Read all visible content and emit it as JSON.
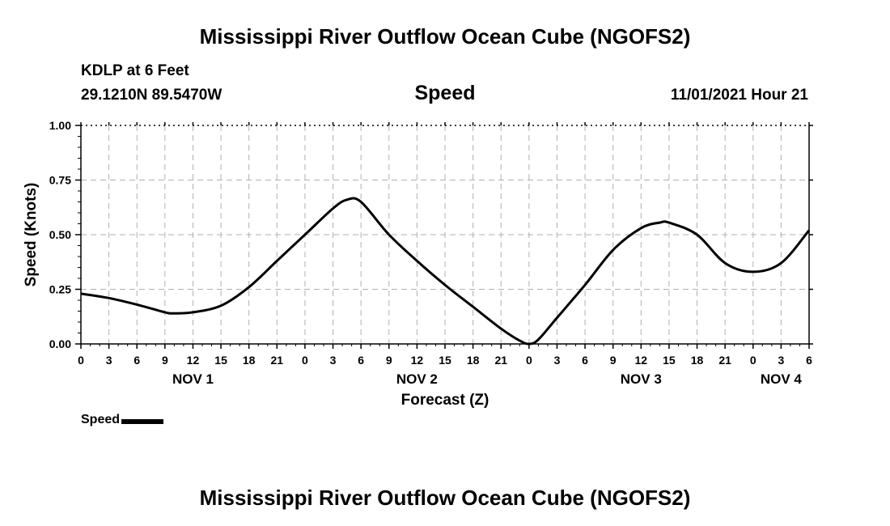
{
  "header": {
    "title": "Mississippi River Outflow Ocean Cube (NGOFS2)",
    "station": "KDLP at 6 Feet",
    "coords": "29.1210N  89.5470W",
    "datetime": "11/01/2021 Hour 21"
  },
  "footer": {
    "title": "Mississippi River Outflow Ocean Cube (NGOFS2)"
  },
  "legend": {
    "label": "Speed"
  },
  "colors": {
    "line": "#000000",
    "grid": "#b0b0b0",
    "axis": "#000000"
  },
  "chart_data": {
    "type": "line",
    "title": "Speed",
    "xlabel": "Forecast (Z)",
    "ylabel": "Speed (Knots)",
    "xlim": [
      0,
      78
    ],
    "ylim": [
      0,
      1.0
    ],
    "x_unit": "hours since NOV 1 00Z",
    "grid": true,
    "y_ticks": [
      {
        "value": 0.0,
        "label": "0.00"
      },
      {
        "value": 0.25,
        "label": "0.25"
      },
      {
        "value": 0.5,
        "label": "0.50"
      },
      {
        "value": 0.75,
        "label": "0.75"
      },
      {
        "value": 1.0,
        "label": "1.00"
      }
    ],
    "x_ticks": [
      {
        "value": 0,
        "label": "0"
      },
      {
        "value": 3,
        "label": "3"
      },
      {
        "value": 6,
        "label": "6"
      },
      {
        "value": 9,
        "label": "9"
      },
      {
        "value": 12,
        "label": "12"
      },
      {
        "value": 15,
        "label": "15"
      },
      {
        "value": 18,
        "label": "18"
      },
      {
        "value": 21,
        "label": "21"
      },
      {
        "value": 24,
        "label": "0"
      },
      {
        "value": 27,
        "label": "3"
      },
      {
        "value": 30,
        "label": "6"
      },
      {
        "value": 33,
        "label": "9"
      },
      {
        "value": 36,
        "label": "12"
      },
      {
        "value": 39,
        "label": "15"
      },
      {
        "value": 42,
        "label": "18"
      },
      {
        "value": 45,
        "label": "21"
      },
      {
        "value": 48,
        "label": "0"
      },
      {
        "value": 51,
        "label": "3"
      },
      {
        "value": 54,
        "label": "6"
      },
      {
        "value": 57,
        "label": "9"
      },
      {
        "value": 60,
        "label": "12"
      },
      {
        "value": 63,
        "label": "15"
      },
      {
        "value": 66,
        "label": "18"
      },
      {
        "value": 69,
        "label": "21"
      },
      {
        "value": 72,
        "label": "0"
      },
      {
        "value": 75,
        "label": "3"
      },
      {
        "value": 78,
        "label": "6"
      }
    ],
    "day_labels": [
      {
        "value": 12,
        "label": "NOV 1"
      },
      {
        "value": 36,
        "label": "NOV 2"
      },
      {
        "value": 60,
        "label": "NOV 3"
      },
      {
        "value": 75,
        "label": "NOV 4"
      }
    ],
    "series": [
      {
        "name": "Speed",
        "x": [
          0,
          3,
          6,
          9,
          10,
          12,
          15,
          18,
          21,
          24,
          27,
          28.5,
          30,
          33,
          36,
          39,
          42,
          45,
          47,
          48,
          49,
          51,
          54,
          57,
          60,
          62,
          63,
          66,
          69,
          72,
          75,
          78
        ],
        "y": [
          0.23,
          0.21,
          0.18,
          0.145,
          0.14,
          0.145,
          0.175,
          0.26,
          0.38,
          0.5,
          0.62,
          0.66,
          0.65,
          0.5,
          0.38,
          0.27,
          0.17,
          0.07,
          0.015,
          0.0,
          0.02,
          0.12,
          0.27,
          0.43,
          0.53,
          0.555,
          0.555,
          0.5,
          0.37,
          0.33,
          0.37,
          0.52
        ]
      }
    ]
  }
}
